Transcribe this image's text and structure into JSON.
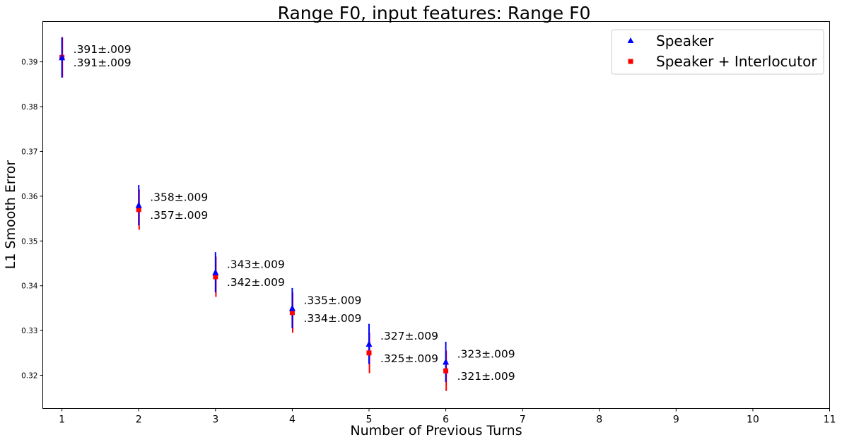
{
  "chart_data": {
    "type": "scatter",
    "title": "Range F0, input features: Range F0",
    "xlabel": "Number of Previous Turns",
    "ylabel": "L1 Smooth Error",
    "xlim": [
      0.75,
      11
    ],
    "ylim": [
      0.3126,
      0.399
    ],
    "xticks": [
      1,
      2,
      3,
      4,
      5,
      6,
      7,
      8,
      9,
      10,
      11
    ],
    "yticks": [
      0.32,
      0.33,
      0.34,
      0.35,
      0.36,
      0.37,
      0.38,
      0.39
    ],
    "ytick_labels": [
      "0.32",
      "0.33",
      "0.34",
      "0.35",
      "0.36",
      "0.37",
      "0.38",
      "0.39"
    ],
    "grid": false,
    "legend_position": "top-right",
    "series": [
      {
        "name": "Speaker",
        "marker": "triangle",
        "color": "#0000ff",
        "x": [
          1,
          2,
          3,
          4,
          5,
          6
        ],
        "y": [
          0.391,
          0.358,
          0.343,
          0.335,
          0.327,
          0.323
        ],
        "error": [
          0.0045,
          0.0045,
          0.0045,
          0.0045,
          0.0045,
          0.0045
        ],
        "labels": [
          ".391±.009",
          ".358±.009",
          ".343±.009",
          ".335±.009",
          ".327±.009",
          ".323±.009"
        ]
      },
      {
        "name": "Speaker + Interlocutor",
        "marker": "square",
        "color": "#ff0000",
        "x": [
          1,
          2,
          3,
          4,
          5,
          6
        ],
        "y": [
          0.391,
          0.357,
          0.342,
          0.334,
          0.325,
          0.321
        ],
        "error": [
          0.0045,
          0.0045,
          0.0045,
          0.0045,
          0.0045,
          0.0045
        ],
        "labels": [
          ".391±.009",
          ".357±.009",
          ".342±.009",
          ".334±.009",
          ".325±.009",
          ".321±.009"
        ]
      }
    ]
  }
}
